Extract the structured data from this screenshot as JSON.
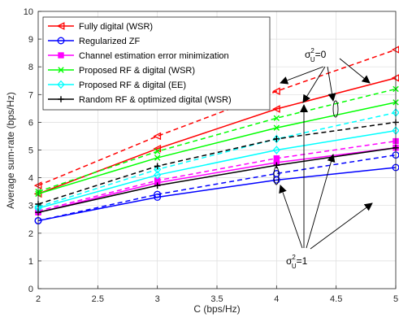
{
  "chart_data": {
    "type": "line",
    "title": "",
    "xlabel": "C (bps/Hz)",
    "ylabel": "Average sum-rate (bps/Hz)",
    "xlim": [
      2,
      5
    ],
    "ylim": [
      0,
      10
    ],
    "xticks": [
      2,
      2.5,
      3,
      3.5,
      4,
      4.5,
      5
    ],
    "yticks": [
      0,
      1,
      2,
      3,
      4,
      5,
      6,
      7,
      8,
      9,
      10
    ],
    "x": [
      2,
      3,
      4,
      5
    ],
    "grid": true,
    "legend_position": "top-left",
    "legend": [
      {
        "label": "Fully digital (WSR)",
        "color": "#ff0000",
        "marker": "triangle-left"
      },
      {
        "label": "Regularized ZF",
        "color": "#0000ff",
        "marker": "circle"
      },
      {
        "label": "Channel estimation error minimization",
        "color": "#ff00ff",
        "marker": "square"
      },
      {
        "label": "Proposed RF & digital (WSR)",
        "color": "#00ff00",
        "marker": "x"
      },
      {
        "label": "Proposed RF & digital (EE)",
        "color": "#00ffff",
        "marker": "diamond"
      },
      {
        "label": "Random RF & optimized digital (WSR)",
        "color": "#000000",
        "marker": "plus"
      }
    ],
    "series": [
      {
        "legend_index": 0,
        "color": "#ff0000",
        "marker": "triangle-left",
        "dash": "dashed",
        "values": [
          3.72,
          5.5,
          7.12,
          8.62
        ]
      },
      {
        "legend_index": 0,
        "color": "#ff0000",
        "marker": "triangle-left",
        "dash": "solid",
        "values": [
          3.42,
          5.05,
          6.48,
          7.6
        ]
      },
      {
        "legend_index": 1,
        "color": "#0000ff",
        "marker": "circle",
        "dash": "dashed",
        "values": [
          2.45,
          3.4,
          4.15,
          4.82
        ]
      },
      {
        "legend_index": 1,
        "color": "#0000ff",
        "marker": "circle",
        "dash": "solid",
        "values": [
          2.45,
          3.3,
          3.92,
          4.37
        ]
      },
      {
        "legend_index": 2,
        "color": "#ff00ff",
        "marker": "square",
        "dash": "dashed",
        "values": [
          2.8,
          3.9,
          4.7,
          5.32
        ]
      },
      {
        "legend_index": 2,
        "color": "#ff00ff",
        "marker": "square",
        "dash": "solid",
        "values": [
          2.75,
          3.82,
          4.55,
          5.08
        ]
      },
      {
        "legend_index": 3,
        "color": "#00ff00",
        "marker": "x",
        "dash": "dashed",
        "values": [
          3.5,
          4.95,
          6.15,
          7.2
        ]
      },
      {
        "legend_index": 3,
        "color": "#00ff00",
        "marker": "x",
        "dash": "solid",
        "values": [
          3.42,
          4.72,
          5.8,
          6.72
        ]
      },
      {
        "legend_index": 4,
        "color": "#00ffff",
        "marker": "diamond",
        "dash": "dashed",
        "values": [
          2.95,
          4.3,
          5.4,
          6.35
        ]
      },
      {
        "legend_index": 4,
        "color": "#00ffff",
        "marker": "diamond",
        "dash": "solid",
        "values": [
          2.9,
          4.1,
          5.0,
          5.7
        ]
      },
      {
        "legend_index": 5,
        "color": "#000000",
        "marker": "plus",
        "dash": "dashed",
        "values": [
          3.05,
          4.42,
          5.4,
          6.0
        ]
      },
      {
        "legend_index": 5,
        "color": "#000000",
        "marker": "plus",
        "dash": "solid",
        "values": [
          2.75,
          3.72,
          4.45,
          5.08
        ]
      }
    ],
    "annotations": [
      {
        "text_main": "σ",
        "text_sup": "2",
        "text_sub": "U",
        "text_tail": "=0",
        "group": "sigma0"
      },
      {
        "text_main": "σ",
        "text_sup": "2",
        "text_sub": "U",
        "text_tail": "=1",
        "group": "sigma1"
      }
    ]
  }
}
